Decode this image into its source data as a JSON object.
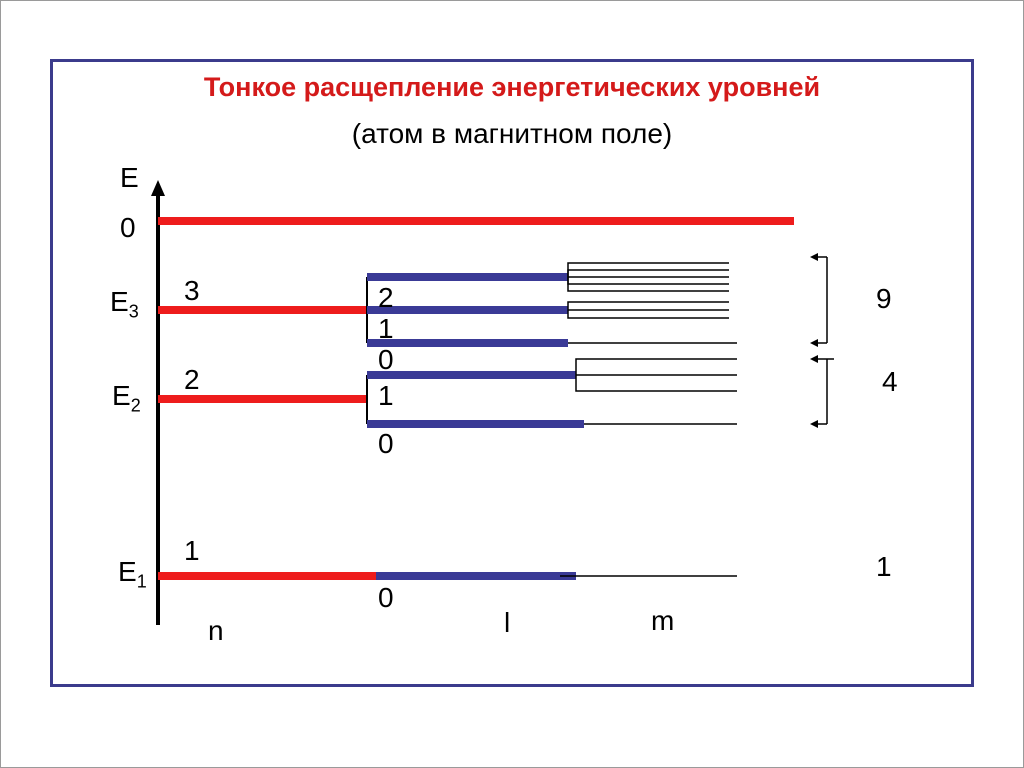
{
  "title": "Тонкое расщепление энергетических уровней",
  "subtitle": "(атом в магнитном поле)",
  "axis": {
    "label": "E",
    "zero": "0"
  },
  "levels": {
    "E3": {
      "name": "E",
      "index": "3",
      "n": "3",
      "l_values": [
        "2",
        "1",
        "0"
      ]
    },
    "E2": {
      "name": "E",
      "index": "2",
      "n": "2",
      "l_values": [
        "1",
        "0"
      ]
    },
    "E1": {
      "name": "E",
      "index": "1",
      "n": "1",
      "l_values": [
        "0"
      ]
    }
  },
  "counts": {
    "n3": "9",
    "n2": "4",
    "n1": "1"
  },
  "columns": {
    "n": "n",
    "l": "l",
    "m": "m"
  },
  "colors": {
    "n_level": "#ee1c1c",
    "l_level": "#3a3a96",
    "frame": "#3b3b8c",
    "title": "#d41a1a"
  }
}
